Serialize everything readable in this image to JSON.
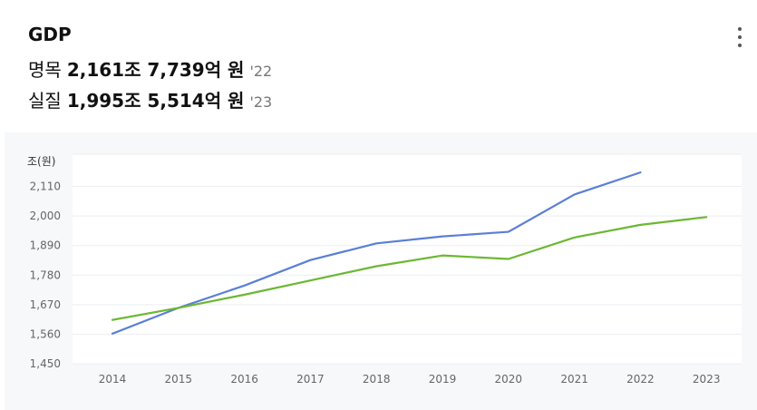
{
  "header": {
    "title": "GDP",
    "nominal": {
      "label": "명목",
      "value": "2,161조 7,739억 원",
      "year": "'22"
    },
    "real": {
      "label": "실질",
      "value": "1,995조 5,514억 원",
      "year": "'23"
    }
  },
  "menu_icon": "more-vertical-icon",
  "chart_data": {
    "type": "line",
    "unit_label": "조(원)",
    "categories": [
      "2014",
      "2015",
      "2016",
      "2017",
      "2018",
      "2019",
      "2020",
      "2021",
      "2022",
      "2023"
    ],
    "y_ticks": [
      1450,
      1560,
      1670,
      1780,
      1890,
      2000,
      2110
    ],
    "y_tick_labels": [
      "1,450",
      "1,560",
      "1,670",
      "1,780",
      "1,890",
      "2,000",
      "2,110"
    ],
    "ylim": [
      1450,
      2230
    ],
    "grid": true,
    "series": [
      {
        "color": "#5b7fd6",
        "values": [
          1562,
          1658,
          1741,
          1836,
          1898,
          1924,
          1941,
          2080,
          2162,
          null
        ]
      },
      {
        "color": "#6cb733",
        "values": [
          1613,
          1658,
          1707,
          1760,
          1813,
          1853,
          1840,
          1920,
          1967,
          1996
        ]
      }
    ]
  }
}
